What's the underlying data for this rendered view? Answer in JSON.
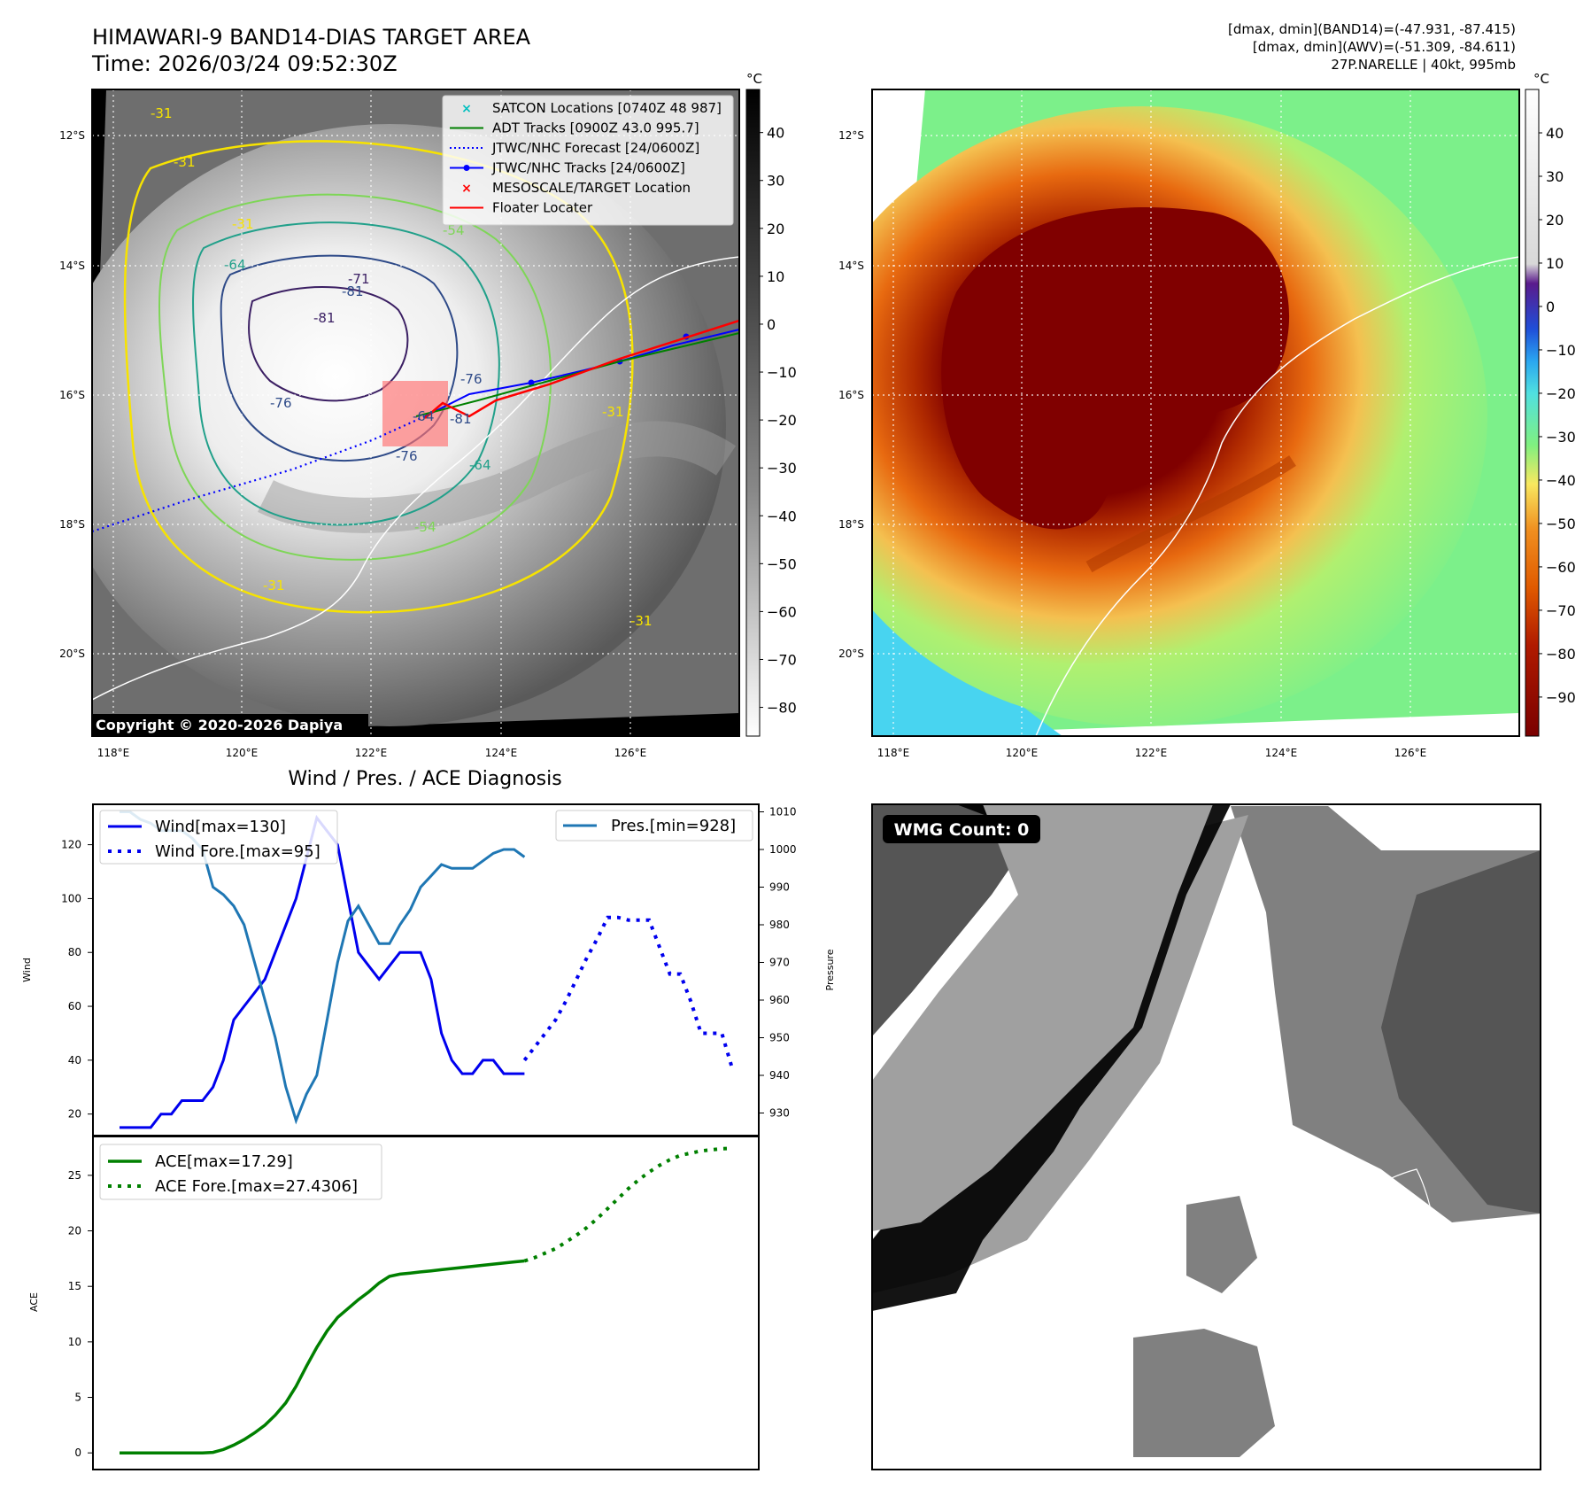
{
  "header": {
    "title": "HIMAWARI-9 BAND14-DIAS TARGET AREA",
    "time": "Time: 2026/03/24 09:52:30Z",
    "stats_band14": "[dmax, dmin](BAND14)=(-47.931, -87.415)",
    "stats_awv": "[dmax, dmin](AWV)=(-51.309, -84.611)",
    "storm": "27P.NARELLE | 40kt, 995mb",
    "copyright": "Copyright © 2020-2026 Dapiya"
  },
  "colors": {
    "wind": "#0000ee",
    "pressure": "#1f77b4",
    "ace": "#008000",
    "legend_satcon": "#00bfbf",
    "legend_adt": "#008000",
    "legend_jtwc_fc": "#0000ff",
    "legend_jtwc_track": "#0000ff",
    "legend_target": "#ff0000",
    "legend_floater": "#ff0000"
  },
  "map_axes": {
    "lon_ticks": [
      "118°E",
      "120°E",
      "122°E",
      "124°E",
      "126°E"
    ],
    "lat_ticks": [
      "12°S",
      "14°S",
      "16°S",
      "18°S",
      "20°S"
    ]
  },
  "legend": [
    {
      "label": "SATCON Locations [0740Z 48 987]",
      "marker": "x",
      "color_key": "legend_satcon"
    },
    {
      "label": "ADT Tracks [0900Z 43.0 995.7]",
      "marker": "line",
      "color_key": "legend_adt"
    },
    {
      "label": "JTWC/NHC Forecast [24/0600Z]",
      "marker": "dotted",
      "color_key": "legend_jtwc_fc"
    },
    {
      "label": "JTWC/NHC Tracks [24/0600Z]",
      "marker": "line-dot",
      "color_key": "legend_jtwc_track"
    },
    {
      "label": "MESOSCALE/TARGET Location",
      "marker": "x",
      "color_key": "legend_target"
    },
    {
      "label": "Floater Locater",
      "marker": "line",
      "color_key": "legend_floater"
    }
  ],
  "contour_labels": [
    "-31",
    "-31",
    "-31",
    "-54",
    "-64",
    "-81",
    "-71",
    "-76",
    "-81",
    "-76",
    "-76",
    "-64",
    "-54",
    "-31",
    "-31",
    "-64",
    "-81",
    "-31"
  ],
  "colorbar1": {
    "unit": "°C",
    "ticks": [
      "40",
      "30",
      "20",
      "10",
      "0",
      "−10",
      "−20",
      "−30",
      "−40",
      "−50",
      "−60",
      "−70",
      "−80"
    ]
  },
  "colorbar2": {
    "unit": "°C",
    "ticks": [
      "40",
      "30",
      "20",
      "10",
      "0",
      "−10",
      "−20",
      "−30",
      "−40",
      "−50",
      "−60",
      "−70",
      "−80",
      "−90"
    ]
  },
  "wmg": {
    "label": "WMG Count: 0"
  },
  "chart_data": [
    {
      "type": "line",
      "title": "Wind / Pres. / ACE Diagnosis",
      "ylabel": "Wind",
      "y2label": "Pressure",
      "ylim": [
        12,
        135
      ],
      "y2lim": [
        924,
        1012
      ],
      "yticks": [
        "20",
        "40",
        "60",
        "80",
        "100",
        "120"
      ],
      "y2ticks": [
        "930",
        "940",
        "950",
        "960",
        "970",
        "980",
        "990",
        "1000",
        "1010"
      ],
      "legend_left": [
        "Wind[max=130]",
        "Wind Fore.[max=95]"
      ],
      "legend_right": [
        "Pres.[min=928]"
      ],
      "series": [
        {
          "name": "Wind[max=130]",
          "style": "solid",
          "x": [
            0,
            1,
            2,
            3,
            4,
            5,
            6,
            7,
            8,
            9,
            10,
            11,
            12,
            13,
            14,
            15,
            16,
            17,
            18,
            19,
            20,
            21,
            22,
            23,
            24,
            25,
            26,
            27,
            28,
            29,
            30,
            31,
            32,
            33,
            34,
            35,
            36,
            37,
            38,
            39
          ],
          "values": [
            15,
            15,
            15,
            15,
            20,
            20,
            25,
            25,
            25,
            30,
            40,
            55,
            60,
            65,
            70,
            80,
            90,
            100,
            115,
            130,
            125,
            120,
            100,
            80,
            75,
            70,
            75,
            80,
            80,
            80,
            70,
            50,
            40,
            35,
            35,
            40,
            40,
            35,
            35,
            35
          ]
        },
        {
          "name": "Wind Fore.[max=95]",
          "style": "dotted",
          "x": [
            39,
            40,
            41,
            42,
            43,
            44,
            45,
            46,
            47,
            48,
            49,
            50,
            51,
            52,
            53,
            54,
            55,
            56,
            57,
            58,
            59
          ],
          "values": [
            40,
            45,
            50,
            55,
            62,
            70,
            78,
            85,
            93,
            93,
            92,
            92,
            92,
            82,
            72,
            72,
            62,
            50,
            50,
            50,
            37
          ]
        },
        {
          "name": "Pres.[min=928]",
          "axis": "right",
          "style": "solid",
          "x": [
            0,
            1,
            2,
            3,
            4,
            5,
            6,
            7,
            8,
            9,
            10,
            11,
            12,
            13,
            14,
            15,
            16,
            17,
            18,
            19,
            20,
            21,
            22,
            23,
            24,
            25,
            26,
            27,
            28,
            29,
            30,
            31,
            32,
            33,
            34,
            35,
            36,
            37,
            38,
            39
          ],
          "values": [
            1010,
            1010,
            1008,
            1007,
            1005,
            1005,
            1005,
            1003,
            1000,
            990,
            988,
            985,
            980,
            970,
            960,
            950,
            937,
            928,
            935,
            940,
            955,
            970,
            981,
            985,
            980,
            975,
            975,
            980,
            984,
            990,
            993,
            996,
            995,
            995,
            995,
            997,
            999,
            1000,
            1000,
            998
          ]
        }
      ]
    },
    {
      "type": "line",
      "ylabel": "ACE",
      "ylim": [
        -1.5,
        28.5
      ],
      "yticks": [
        "0",
        "5",
        "10",
        "15",
        "20",
        "25"
      ],
      "legend": [
        "ACE[max=17.29]",
        "ACE Fore.[max=27.4306]"
      ],
      "series": [
        {
          "name": "ACE[max=17.29]",
          "style": "solid",
          "x": [
            0,
            2,
            4,
            6,
            8,
            9,
            10,
            11,
            12,
            13,
            14,
            15,
            16,
            17,
            18,
            19,
            20,
            21,
            22,
            23,
            24,
            25,
            26,
            27,
            28,
            29,
            30,
            31,
            32,
            33,
            34,
            35,
            36,
            37,
            38,
            39
          ],
          "values": [
            0,
            0,
            0,
            0,
            0,
            0.05,
            0.3,
            0.7,
            1.2,
            1.8,
            2.5,
            3.4,
            4.5,
            6.0,
            7.8,
            9.5,
            11.0,
            12.2,
            13.0,
            13.8,
            14.5,
            15.3,
            15.9,
            16.1,
            16.2,
            16.3,
            16.4,
            16.5,
            16.6,
            16.7,
            16.8,
            16.9,
            17.0,
            17.1,
            17.2,
            17.29
          ]
        },
        {
          "name": "ACE Fore.[max=27.4306]",
          "style": "dotted",
          "x": [
            39,
            40,
            41,
            42,
            43,
            44,
            45,
            46,
            47,
            48,
            49,
            50,
            51,
            52,
            53,
            54,
            55,
            56,
            57,
            58,
            59
          ],
          "values": [
            17.29,
            17.6,
            18.0,
            18.4,
            19.0,
            19.6,
            20.3,
            21.1,
            22.0,
            22.9,
            23.8,
            24.6,
            25.3,
            25.9,
            26.4,
            26.8,
            27.0,
            27.2,
            27.3,
            27.4,
            27.43
          ]
        }
      ]
    }
  ]
}
